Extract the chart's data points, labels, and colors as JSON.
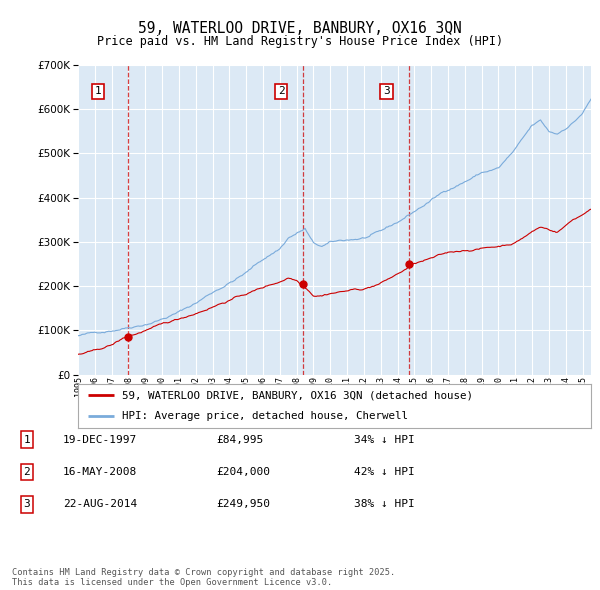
{
  "title": "59, WATERLOO DRIVE, BANBURY, OX16 3QN",
  "subtitle": "Price paid vs. HM Land Registry's House Price Index (HPI)",
  "legend_line1": "59, WATERLOO DRIVE, BANBURY, OX16 3QN (detached house)",
  "legend_line2": "HPI: Average price, detached house, Cherwell",
  "table": [
    {
      "num": "1",
      "date": "19-DEC-1997",
      "price": "£84,995",
      "hpi": "34% ↓ HPI"
    },
    {
      "num": "2",
      "date": "16-MAY-2008",
      "price": "£204,000",
      "hpi": "42% ↓ HPI"
    },
    {
      "num": "3",
      "date": "22-AUG-2014",
      "price": "£249,950",
      "hpi": "38% ↓ HPI"
    }
  ],
  "footnote": "Contains HM Land Registry data © Crown copyright and database right 2025.\nThis data is licensed under the Open Government Licence v3.0.",
  "ylim": [
    0,
    700000
  ],
  "yticks": [
    0,
    100000,
    200000,
    300000,
    400000,
    500000,
    600000,
    700000
  ],
  "background_color": "#dce9f5",
  "grid_color": "#ffffff",
  "red_line_color": "#cc0000",
  "blue_line_color": "#7aabdb",
  "sale1_date_num": 1997.97,
  "sale1_price": 84995,
  "sale2_date_num": 2008.38,
  "sale2_price": 204000,
  "sale3_date_num": 2014.65,
  "sale3_price": 249950,
  "xmin": 1995.0,
  "xmax": 2025.5
}
